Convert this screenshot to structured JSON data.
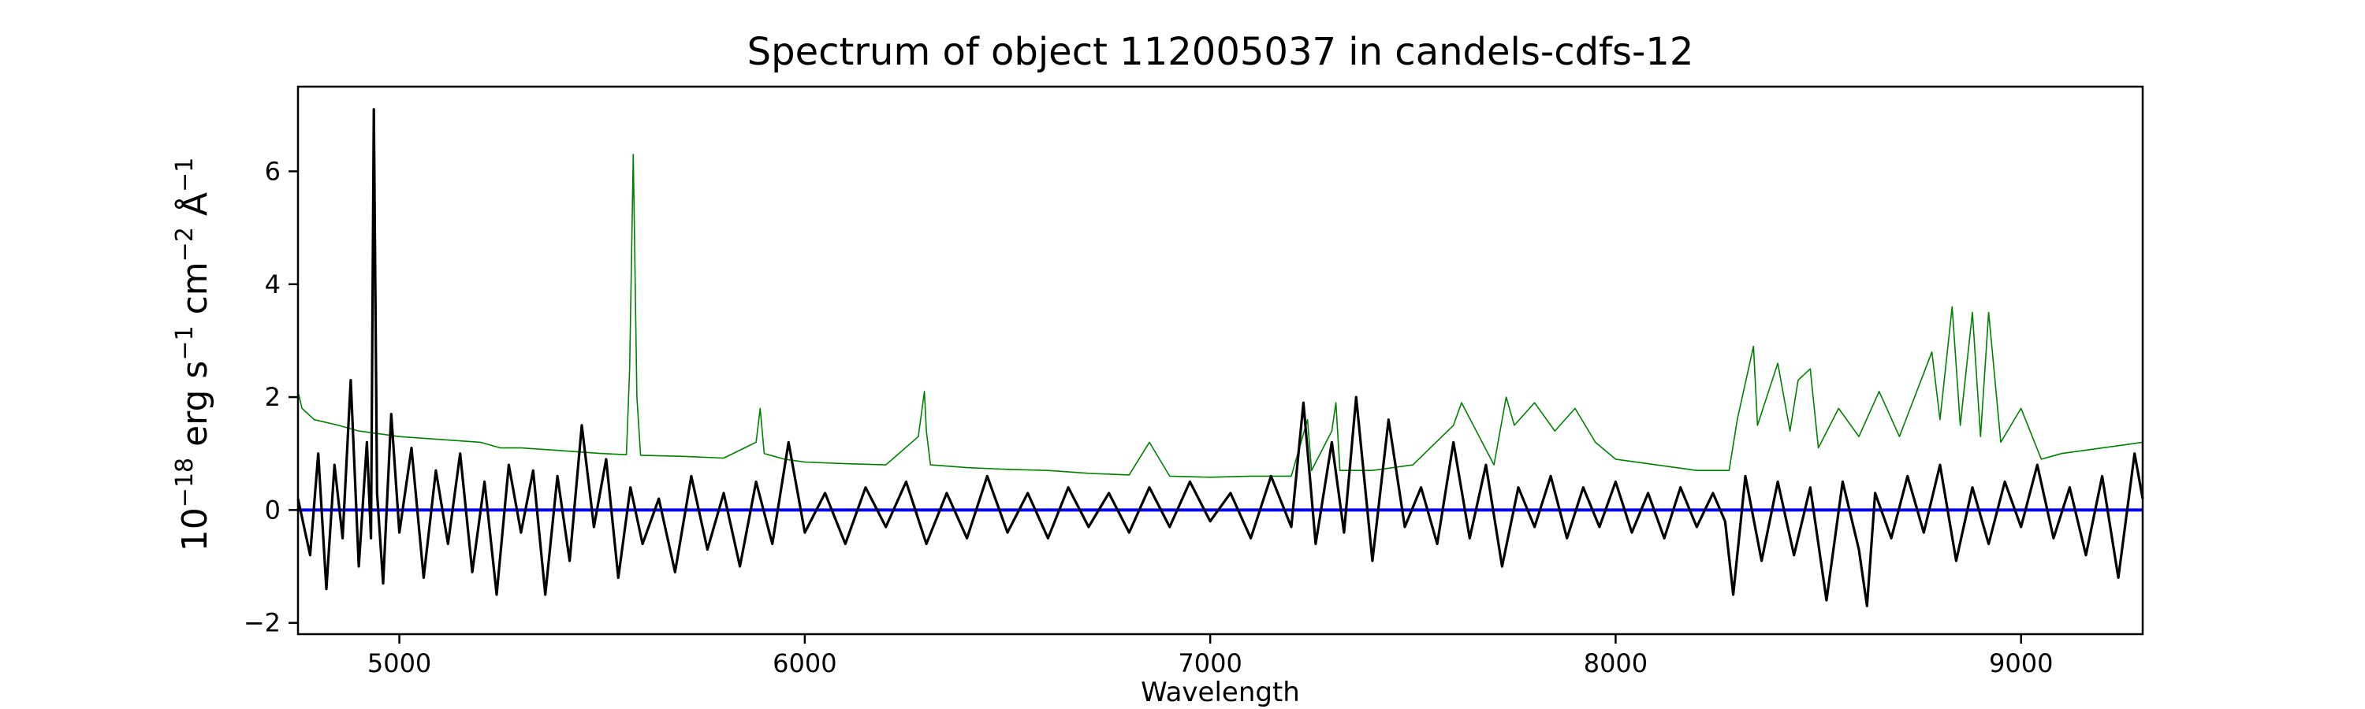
{
  "chart_data": {
    "type": "line",
    "title": "Spectrum of object 112005037 in candels-cdfs-12",
    "xlabel": "Wavelength",
    "ylabel": {
      "base": "10",
      "exp1": "−18",
      "unit1": " erg s",
      "exp2": "−1",
      "unit2": " cm",
      "exp3": "−2",
      "unit3": " Å",
      "exp4": "−1"
    },
    "xlim": [
      4750,
      9300
    ],
    "ylim": [
      -2.2,
      7.5
    ],
    "xticks": [
      5000,
      6000,
      7000,
      8000,
      9000
    ],
    "xtick_labels": [
      "5000",
      "6000",
      "7000",
      "8000",
      "9000"
    ],
    "yticks": [
      -2,
      0,
      2,
      4,
      6
    ],
    "ytick_labels": [
      "−2",
      "0",
      "2",
      "4",
      "6"
    ],
    "grid": false,
    "series": [
      {
        "role": "zero-line",
        "color": "#0000ff",
        "x": [
          4750,
          9300
        ],
        "values": [
          0,
          0
        ]
      },
      {
        "role": "noise",
        "color": "#008000",
        "x": [
          4750,
          4760,
          4790,
          4850,
          4900,
          5000,
          5100,
          5200,
          5250,
          5300,
          5400,
          5500,
          5560,
          5568,
          5577,
          5586,
          5595,
          5700,
          5800,
          5880,
          5890,
          5900,
          5950,
          6000,
          6100,
          6200,
          6280,
          6295,
          6300,
          6310,
          6400,
          6500,
          6600,
          6700,
          6800,
          6850,
          6900,
          7000,
          7100,
          7200,
          7240,
          7250,
          7300,
          7310,
          7320,
          7400,
          7500,
          7600,
          7620,
          7700,
          7730,
          7750,
          7800,
          7850,
          7900,
          7950,
          8000,
          8100,
          8200,
          8280,
          8300,
          8340,
          8350,
          8400,
          8430,
          8450,
          8480,
          8500,
          8550,
          8600,
          8650,
          8700,
          8780,
          8800,
          8830,
          8850,
          8880,
          8900,
          8920,
          8950,
          9000,
          9050,
          9100,
          9200,
          9300
        ],
        "values": [
          2.1,
          1.8,
          1.6,
          1.5,
          1.4,
          1.3,
          1.25,
          1.2,
          1.1,
          1.1,
          1.05,
          1.0,
          0.98,
          2.5,
          6.3,
          2.0,
          0.97,
          0.95,
          0.92,
          1.2,
          1.8,
          1.0,
          0.9,
          0.85,
          0.82,
          0.8,
          1.3,
          2.1,
          1.4,
          0.8,
          0.75,
          0.72,
          0.7,
          0.65,
          0.62,
          1.2,
          0.6,
          0.58,
          0.6,
          0.6,
          1.6,
          0.7,
          1.4,
          1.9,
          0.7,
          0.7,
          0.8,
          1.5,
          1.9,
          0.8,
          2.0,
          1.5,
          1.9,
          1.4,
          1.8,
          1.2,
          0.9,
          0.8,
          0.7,
          0.7,
          1.6,
          2.9,
          1.5,
          2.6,
          1.4,
          2.3,
          2.5,
          1.1,
          1.8,
          1.3,
          2.1,
          1.3,
          2.8,
          1.6,
          3.6,
          1.5,
          3.5,
          1.3,
          3.5,
          1.2,
          1.8,
          0.9,
          1.0,
          1.1,
          1.2
        ]
      },
      {
        "role": "flux",
        "color": "#000000",
        "x": [
          4750,
          4780,
          4800,
          4820,
          4840,
          4860,
          4880,
          4900,
          4920,
          4930,
          4937,
          4945,
          4960,
          4980,
          5000,
          5030,
          5060,
          5090,
          5120,
          5150,
          5180,
          5210,
          5240,
          5270,
          5300,
          5330,
          5360,
          5390,
          5420,
          5450,
          5480,
          5510,
          5540,
          5570,
          5600,
          5640,
          5680,
          5720,
          5760,
          5800,
          5840,
          5880,
          5920,
          5960,
          6000,
          6050,
          6100,
          6150,
          6200,
          6250,
          6300,
          6350,
          6400,
          6450,
          6500,
          6550,
          6600,
          6650,
          6700,
          6750,
          6800,
          6850,
          6900,
          6950,
          7000,
          7050,
          7100,
          7150,
          7200,
          7230,
          7260,
          7300,
          7330,
          7360,
          7400,
          7440,
          7480,
          7520,
          7560,
          7600,
          7640,
          7680,
          7720,
          7760,
          7800,
          7840,
          7880,
          7920,
          7960,
          8000,
          8040,
          8080,
          8120,
          8160,
          8200,
          8240,
          8270,
          8290,
          8320,
          8360,
          8400,
          8440,
          8480,
          8520,
          8560,
          8600,
          8620,
          8640,
          8680,
          8720,
          8760,
          8800,
          8840,
          8880,
          8920,
          8960,
          9000,
          9040,
          9080,
          9120,
          9160,
          9200,
          9240,
          9280,
          9300
        ],
        "values": [
          0.2,
          -0.8,
          1.0,
          -1.4,
          0.8,
          -0.5,
          2.3,
          -1.0,
          1.2,
          -0.5,
          7.1,
          0.3,
          -1.3,
          1.7,
          -0.4,
          1.1,
          -1.2,
          0.7,
          -0.6,
          1.0,
          -1.1,
          0.5,
          -1.5,
          0.8,
          -0.4,
          0.7,
          -1.5,
          0.6,
          -0.9,
          1.5,
          -0.3,
          0.9,
          -1.2,
          0.4,
          -0.6,
          0.2,
          -1.1,
          0.6,
          -0.7,
          0.3,
          -1.0,
          0.5,
          -0.6,
          1.2,
          -0.4,
          0.3,
          -0.6,
          0.4,
          -0.3,
          0.5,
          -0.6,
          0.3,
          -0.5,
          0.6,
          -0.4,
          0.3,
          -0.5,
          0.4,
          -0.3,
          0.3,
          -0.4,
          0.4,
          -0.3,
          0.5,
          -0.2,
          0.3,
          -0.5,
          0.6,
          -0.3,
          1.9,
          -0.6,
          1.2,
          -0.4,
          2.0,
          -0.9,
          1.6,
          -0.3,
          0.4,
          -0.6,
          1.2,
          -0.5,
          0.8,
          -1.0,
          0.4,
          -0.3,
          0.6,
          -0.5,
          0.4,
          -0.3,
          0.5,
          -0.4,
          0.3,
          -0.5,
          0.4,
          -0.3,
          0.3,
          -0.2,
          -1.5,
          0.6,
          -0.9,
          0.5,
          -0.8,
          0.4,
          -1.6,
          0.5,
          -0.7,
          -1.7,
          0.3,
          -0.5,
          0.6,
          -0.4,
          0.8,
          -0.9,
          0.4,
          -0.6,
          0.5,
          -0.3,
          0.8,
          -0.5,
          0.4,
          -0.8,
          0.6,
          -1.2,
          1.0,
          0.2
        ]
      }
    ]
  }
}
